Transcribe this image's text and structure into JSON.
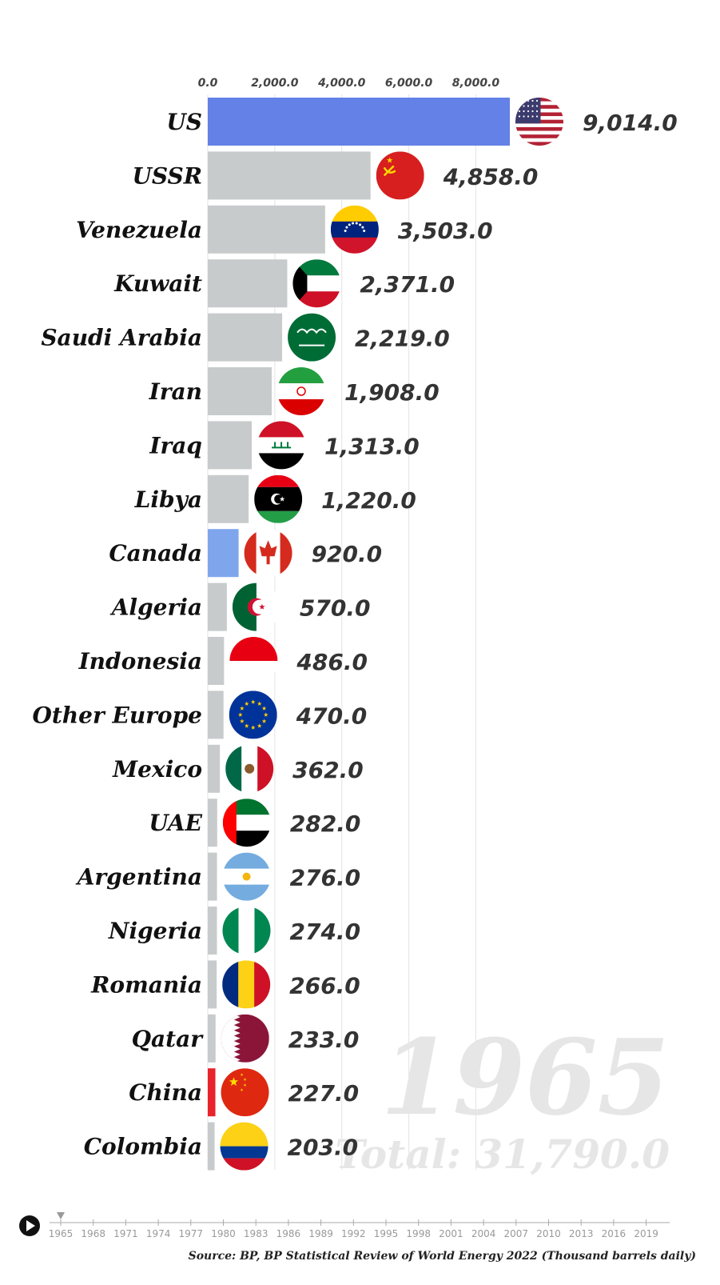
{
  "chart_data": {
    "type": "bar",
    "orientation": "horizontal",
    "year": "1965",
    "total_label": "Total: 31,790.0",
    "source": "Source: BP, BP Statistical Review of World Energy 2022 (Thousand barrels daily)",
    "xlim": [
      0,
      9014
    ],
    "x_ticks": [
      {
        "value": 0,
        "label": "0.0"
      },
      {
        "value": 2000,
        "label": "2,000.0"
      },
      {
        "value": 4000,
        "label": "4,000.0"
      },
      {
        "value": 6000,
        "label": "6,000.0"
      },
      {
        "value": 8000,
        "label": "8,000.0"
      }
    ],
    "bars": [
      {
        "name": "US",
        "value": 9014,
        "label": "9,014.0",
        "color": "#6381e6",
        "flag": "us-flag"
      },
      {
        "name": "USSR",
        "value": 4858,
        "label": "4,858.0",
        "color": "#c8cbcc",
        "flag": "ussr-flag"
      },
      {
        "name": "Venezuela",
        "value": 3503,
        "label": "3,503.0",
        "color": "#c8cbcc",
        "flag": "venezuela-flag"
      },
      {
        "name": "Kuwait",
        "value": 2371,
        "label": "2,371.0",
        "color": "#c8cbcc",
        "flag": "kuwait-flag"
      },
      {
        "name": "Saudi Arabia",
        "value": 2219,
        "label": "2,219.0",
        "color": "#c8cbcc",
        "flag": "saudi-arabia-flag"
      },
      {
        "name": "Iran",
        "value": 1908,
        "label": "1,908.0",
        "color": "#c8cbcc",
        "flag": "iran-flag"
      },
      {
        "name": "Iraq",
        "value": 1313,
        "label": "1,313.0",
        "color": "#c8cbcc",
        "flag": "iraq-flag"
      },
      {
        "name": "Libya",
        "value": 1220,
        "label": "1,220.0",
        "color": "#c8cbcc",
        "flag": "libya-flag"
      },
      {
        "name": "Canada",
        "value": 920,
        "label": "920.0",
        "color": "#7fa6ec",
        "flag": "canada-flag"
      },
      {
        "name": "Algeria",
        "value": 570,
        "label": "570.0",
        "color": "#c8cbcc",
        "flag": "algeria-flag"
      },
      {
        "name": "Indonesia",
        "value": 486,
        "label": "486.0",
        "color": "#c8cbcc",
        "flag": "indonesia-flag"
      },
      {
        "name": "Other Europe",
        "value": 470,
        "label": "470.0",
        "color": "#c8cbcc",
        "flag": "eu-flag"
      },
      {
        "name": "Mexico",
        "value": 362,
        "label": "362.0",
        "color": "#c8cbcc",
        "flag": "mexico-flag"
      },
      {
        "name": "UAE",
        "value": 282,
        "label": "282.0",
        "color": "#c8cbcc",
        "flag": "uae-flag"
      },
      {
        "name": "Argentina",
        "value": 276,
        "label": "276.0",
        "color": "#c8cbcc",
        "flag": "argentina-flag"
      },
      {
        "name": "Nigeria",
        "value": 274,
        "label": "274.0",
        "color": "#c8cbcc",
        "flag": "nigeria-flag"
      },
      {
        "name": "Romania",
        "value": 266,
        "label": "266.0",
        "color": "#c8cbcc",
        "flag": "romania-flag"
      },
      {
        "name": "Qatar",
        "value": 233,
        "label": "233.0",
        "color": "#c8cbcc",
        "flag": "qatar-flag"
      },
      {
        "name": "China",
        "value": 227,
        "label": "227.0",
        "color": "#e8232b",
        "flag": "china-flag"
      },
      {
        "name": "Colombia",
        "value": 203,
        "label": "203.0",
        "color": "#c8cbcc",
        "flag": "colombia-flag"
      }
    ],
    "timeline": {
      "labels": [
        "1965",
        "1968",
        "1971",
        "1974",
        "1977",
        "1980",
        "1983",
        "1986",
        "1989",
        "1992",
        "1995",
        "1998",
        "2001",
        "2004",
        "2007",
        "2010",
        "2013",
        "2016",
        "2019"
      ],
      "current": "1965"
    }
  }
}
